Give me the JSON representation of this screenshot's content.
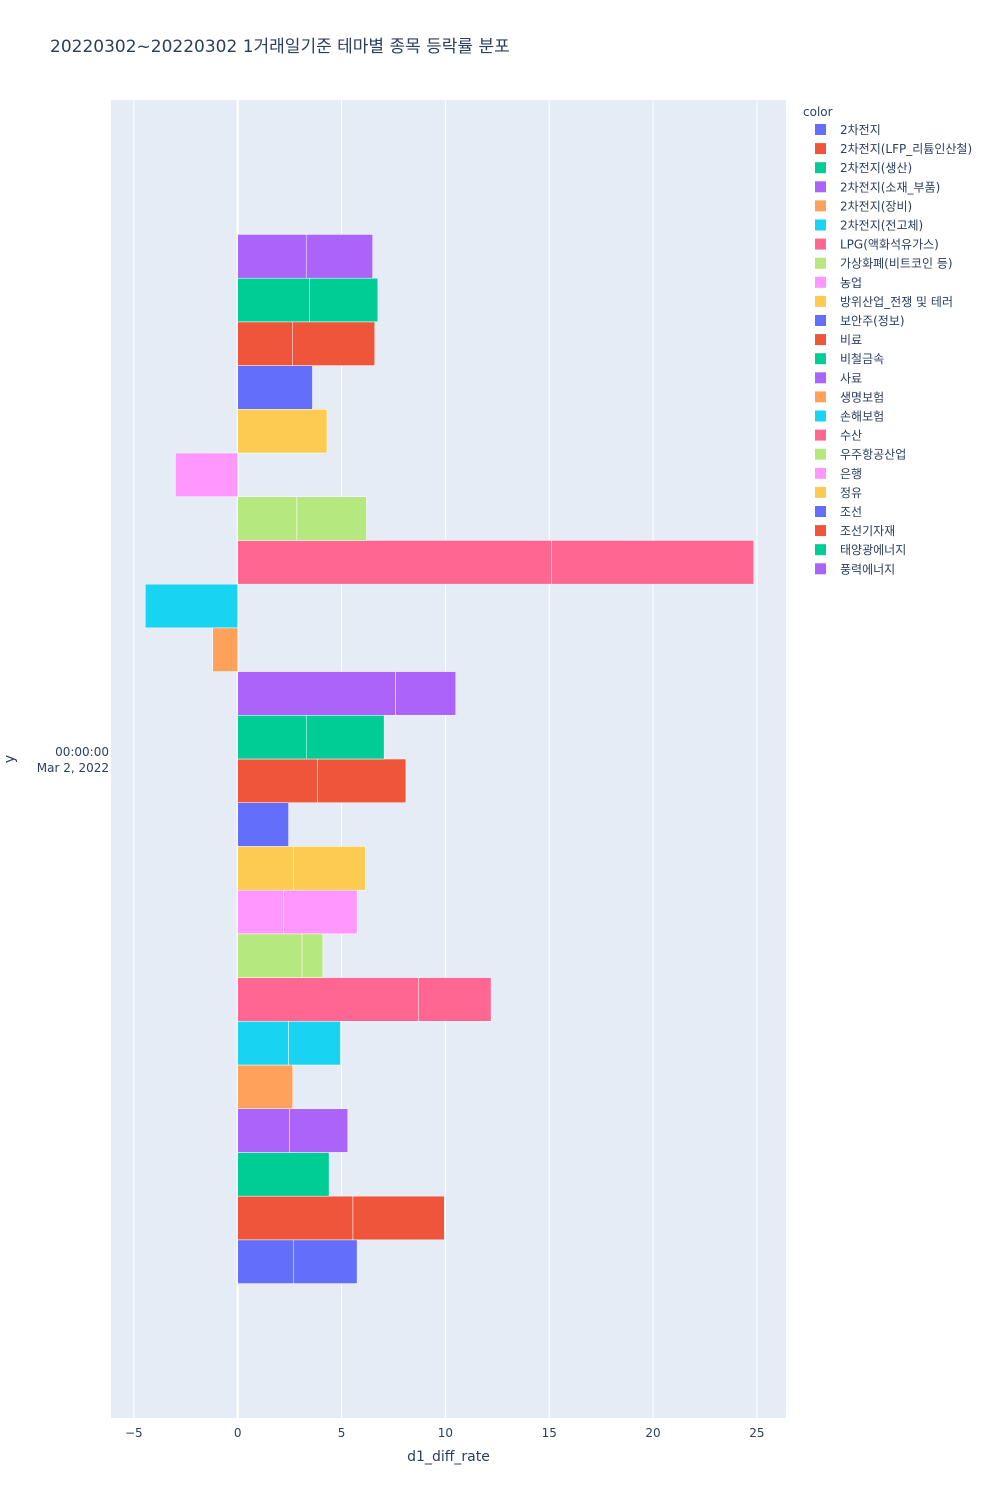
{
  "chart_data": {
    "type": "bar",
    "orientation": "horizontal",
    "barmode": "stacked-segments",
    "title": "20220302~20220302 1거래일기준 테마별 종목 등락률 분포",
    "xlabel": "d1_diff_rate",
    "ylabel": "y",
    "xlim": [
      -6.1,
      26.4
    ],
    "x_ticks": [
      -5,
      0,
      5,
      10,
      15,
      20,
      25
    ],
    "y_tick_lines": [
      "00:00:00",
      "Mar 2, 2022"
    ],
    "grid": true,
    "legend_title": "color",
    "legend_position": "right",
    "series": [
      {
        "name": "2차전지",
        "color": "#636efa",
        "segments": [
          2.7,
          3.05
        ]
      },
      {
        "name": "2차전지(LFP_리튬인산철)",
        "color": "#EF553B",
        "segments": [
          5.55,
          4.4
        ]
      },
      {
        "name": "2차전지(생산)",
        "color": "#00cc96",
        "segments": [
          4.4
        ]
      },
      {
        "name": "2차전지(소재_부품)",
        "color": "#ab63fa",
        "segments": [
          2.5,
          2.8
        ]
      },
      {
        "name": "2차전지(장비)",
        "color": "#FFA15A",
        "segments": [
          2.65
        ]
      },
      {
        "name": "2차전지(전고체)",
        "color": "#19d3f3",
        "segments": [
          2.45,
          2.5
        ]
      },
      {
        "name": "LPG(액화석유가스)",
        "color": "#FF6692",
        "segments": [
          8.7,
          3.5
        ]
      },
      {
        "name": "가상화폐(비트코인 등)",
        "color": "#B6E880",
        "segments": [
          3.1,
          1.0
        ]
      },
      {
        "name": "농업",
        "color": "#FF97FF",
        "segments": [
          2.2,
          3.55
        ]
      },
      {
        "name": "방위산업_전쟁 및 테러",
        "color": "#FECB52",
        "segments": [
          2.7,
          3.45
        ]
      },
      {
        "name": "보안주(정보)",
        "color": "#636efa",
        "segments": [
          2.45
        ]
      },
      {
        "name": "비료",
        "color": "#EF553B",
        "segments": [
          3.85,
          4.25
        ]
      },
      {
        "name": "비철금속",
        "color": "#00cc96",
        "segments": [
          3.3,
          3.75
        ]
      },
      {
        "name": "사료",
        "color": "#ab63fa",
        "segments": [
          7.6,
          2.9
        ]
      },
      {
        "name": "생명보험",
        "color": "#FFA15A",
        "segments": [
          -1.2
        ]
      },
      {
        "name": "손해보험",
        "color": "#19d3f3",
        "segments": [
          -4.45
        ]
      },
      {
        "name": "수산",
        "color": "#FF6692",
        "segments": [
          15.1,
          9.75
        ]
      },
      {
        "name": "우주항공산업",
        "color": "#B6E880",
        "segments": [
          2.85,
          3.35
        ]
      },
      {
        "name": "은행",
        "color": "#FF97FF",
        "segments": [
          -3.0
        ]
      },
      {
        "name": "정유",
        "color": "#FECB52",
        "segments": [
          4.3
        ]
      },
      {
        "name": "조선",
        "color": "#636efa",
        "segments": [
          3.6
        ]
      },
      {
        "name": "조선기자재",
        "color": "#EF553B",
        "segments": [
          2.65,
          3.95
        ]
      },
      {
        "name": "태양광에너지",
        "color": "#00cc96",
        "segments": [
          3.45,
          3.3
        ]
      },
      {
        "name": "풍력에너지",
        "color": "#ab63fa",
        "segments": [
          3.3,
          3.2
        ]
      }
    ]
  }
}
